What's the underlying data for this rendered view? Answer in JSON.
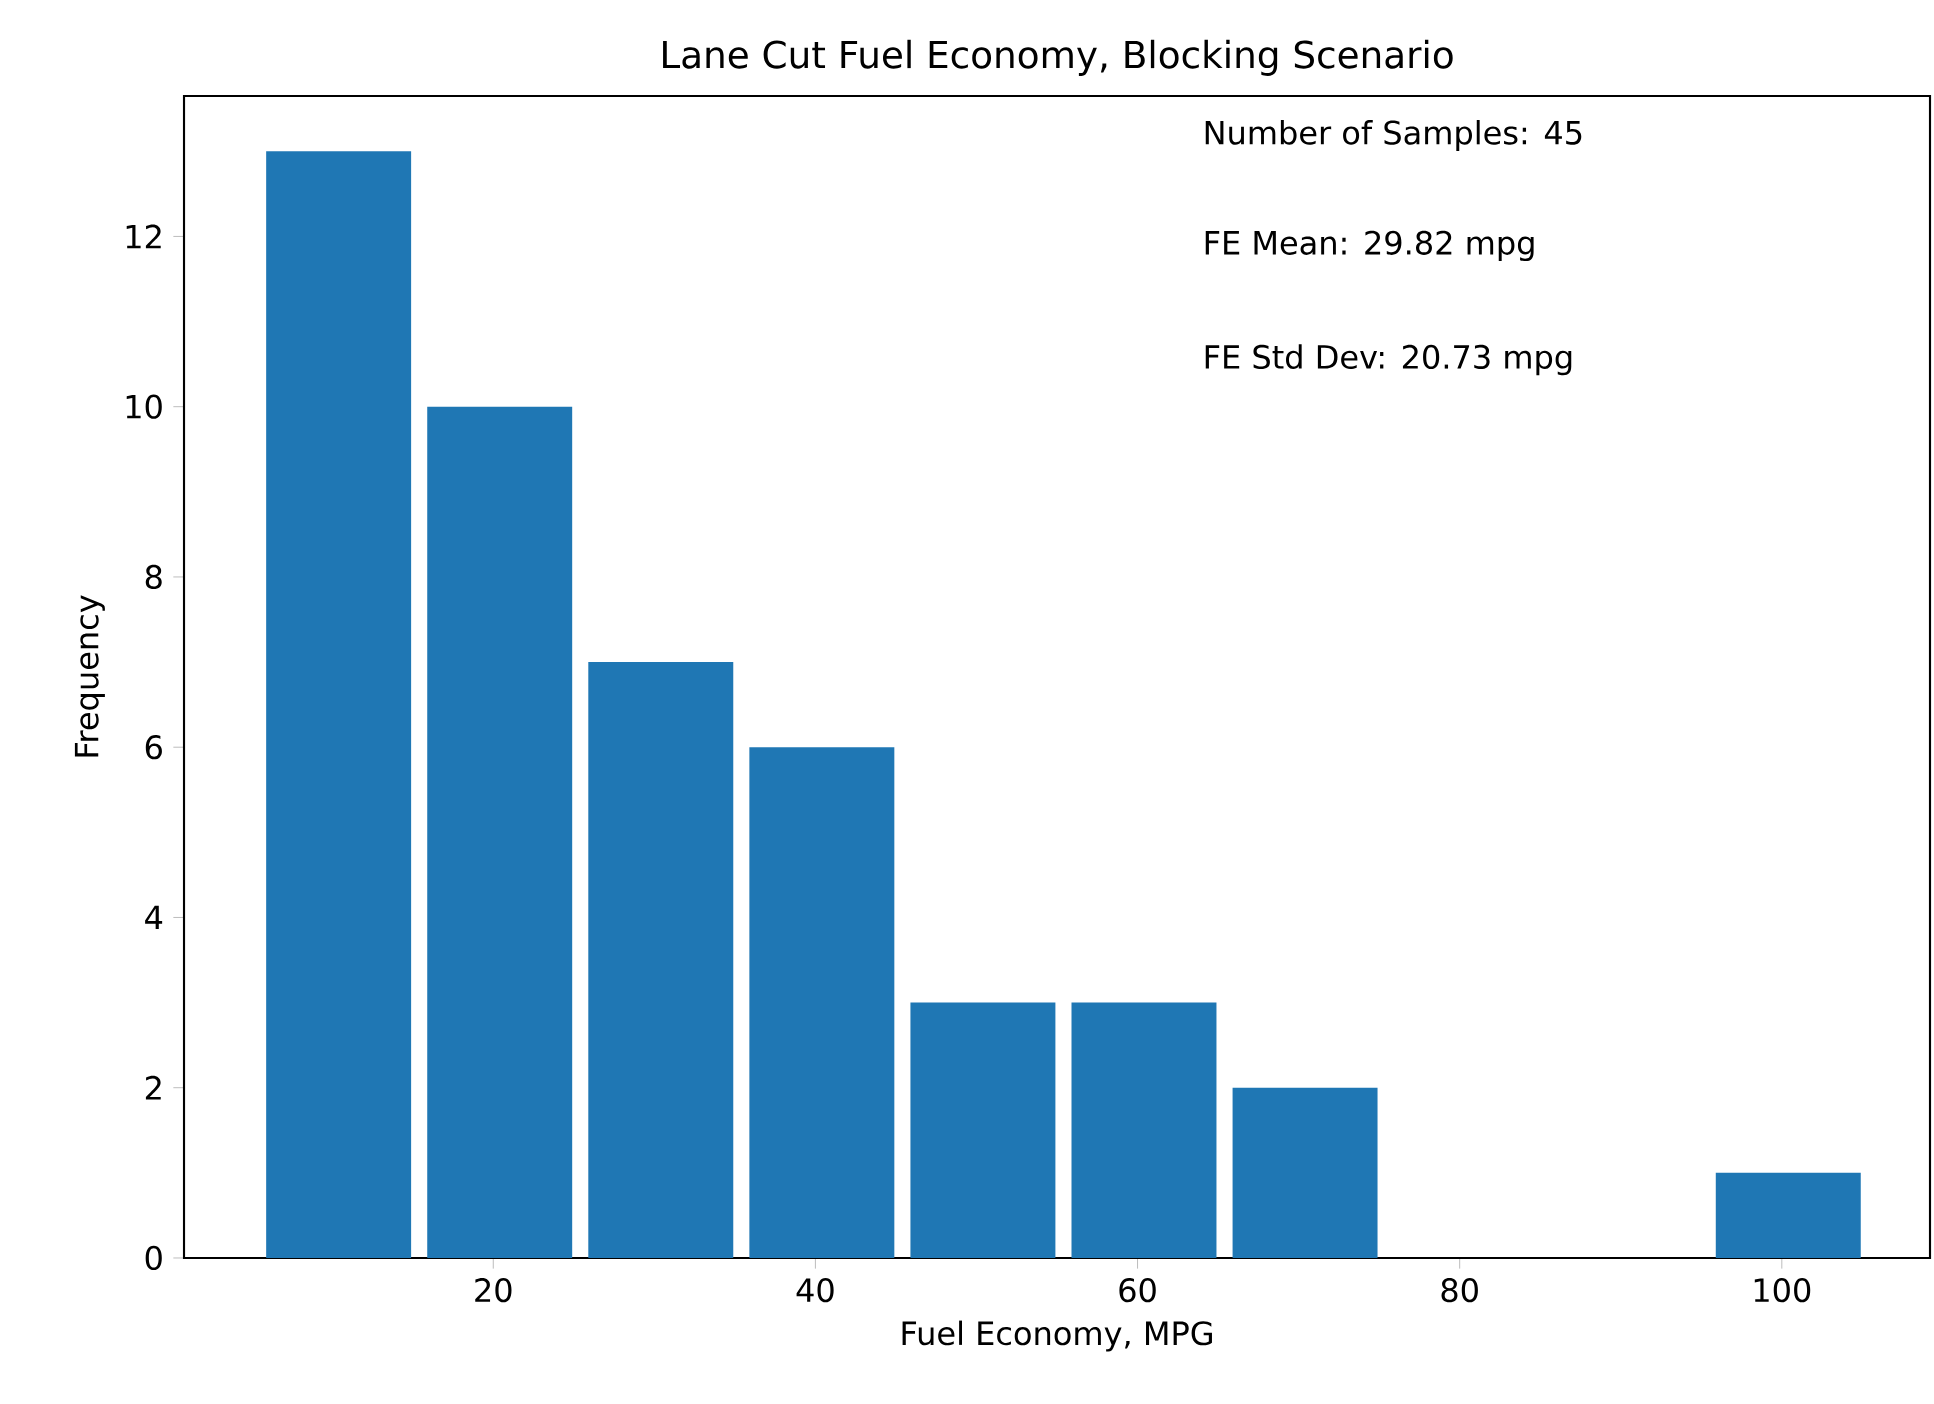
{
  "chart_data": {
    "type": "histogram",
    "title": "Lane Cut Fuel Economy, Blocking Scenario",
    "xlabel": "Fuel Economy, MPG",
    "ylabel": "Frequency",
    "bins": [
      5.4,
      15.4,
      25.4,
      35.4,
      45.4,
      55.4,
      65.4,
      75.4,
      85.4,
      95.4,
      105.4
    ],
    "values": [
      13,
      10,
      7,
      6,
      3,
      3,
      2,
      0,
      0,
      1
    ],
    "color": "#1f77b4",
    "xlim": [
      0.8,
      109.2
    ],
    "ylim": [
      0,
      13.65
    ],
    "xticks": [
      20,
      40,
      60,
      80,
      100
    ],
    "yticks": [
      0,
      2,
      4,
      6,
      8,
      10,
      12
    ],
    "grid": false,
    "annotations": [
      "Number of Samples: 45",
      "FE Mean: 29.82 mpg",
      "FE Std Dev: 20.73 mpg"
    ]
  }
}
